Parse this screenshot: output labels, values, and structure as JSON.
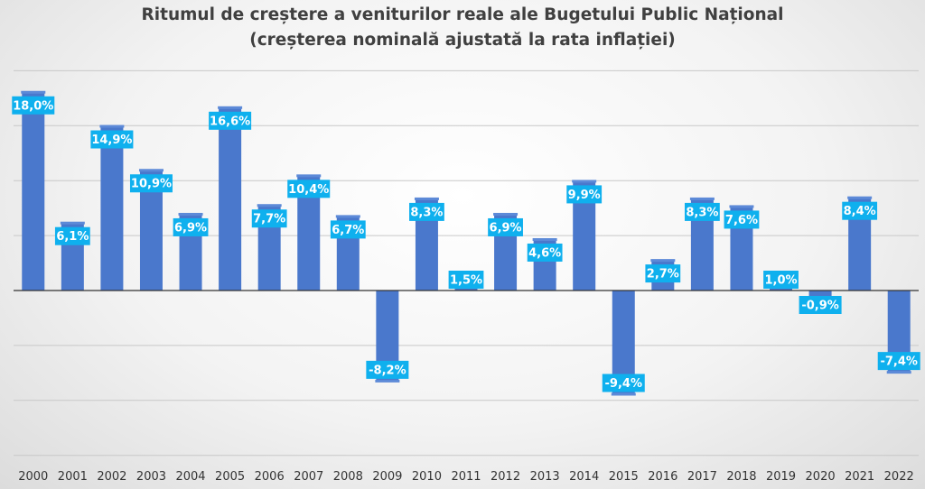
{
  "chart_data": {
    "type": "bar",
    "title": "Ritumul de creștere a veniturilor reale ale Bugetului Public Național",
    "subtitle": "(creșterea nominală ajustată la rata inflației)",
    "categories": [
      "2000",
      "2001",
      "2002",
      "2003",
      "2004",
      "2005",
      "2006",
      "2007",
      "2008",
      "2009",
      "2010",
      "2011",
      "2012",
      "2013",
      "2014",
      "2015",
      "2016",
      "2017",
      "2018",
      "2019",
      "2020",
      "2021",
      "2022"
    ],
    "values": [
      18.0,
      6.1,
      14.9,
      10.9,
      6.9,
      16.6,
      7.7,
      10.4,
      6.7,
      -8.2,
      8.3,
      1.5,
      6.9,
      4.6,
      9.9,
      -9.4,
      2.7,
      8.3,
      7.6,
      1.0,
      -0.9,
      8.4,
      -7.4
    ],
    "data_labels": [
      "18,0%",
      "6,1%",
      "14,9%",
      "10,9%",
      "6,9%",
      "16,6%",
      "7,7%",
      "10,4%",
      "6,7%",
      "-8,2%",
      "8,3%",
      "1,5%",
      "6,9%",
      "4,6%",
      "9,9%",
      "-9,4%",
      "2,7%",
      "8,3%",
      "7,6%",
      "1,0%",
      "-0,9%",
      "8,4%",
      "-7,4%"
    ],
    "xlabel": "",
    "ylabel": "",
    "ylim": [
      -15,
      20
    ],
    "grid": true,
    "legend": "none",
    "bar_color": "#4a78cc",
    "label_color": "#0fb0ee"
  }
}
